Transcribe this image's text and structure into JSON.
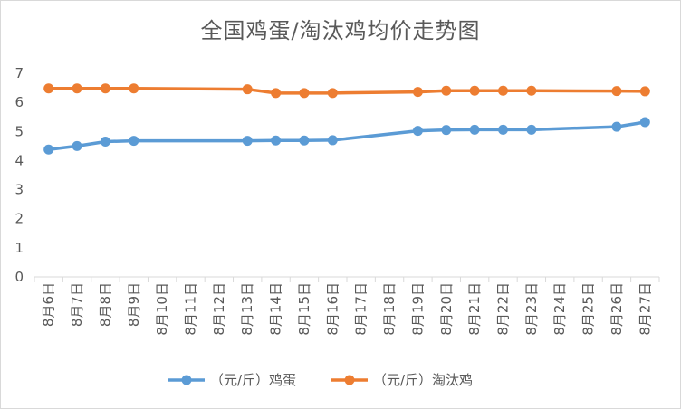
{
  "chart_data": {
    "type": "line",
    "title": "全国鸡蛋/淘汰鸡均价走势图",
    "xlabel": "",
    "ylabel": "",
    "ylim": [
      0,
      7
    ],
    "yticks": [
      0,
      1,
      2,
      3,
      4,
      5,
      6,
      7
    ],
    "grid": false,
    "legend_position": "bottom",
    "categories": [
      "8月6日",
      "8月7日",
      "8月8日",
      "8月9日",
      "8月10日",
      "8月11日",
      "8月12日",
      "8月13日",
      "8月14日",
      "8月15日",
      "8月16日",
      "8月17日",
      "8月18日",
      "8月19日",
      "8月20日",
      "8月21日",
      "8月22日",
      "8月23日",
      "8月24日",
      "8月25日",
      "8月26日",
      "8月27日"
    ],
    "series": [
      {
        "name": "（元/斤）鸡蛋",
        "color": "#5b9bd5",
        "values": [
          4.38,
          4.5,
          4.65,
          4.68,
          null,
          null,
          null,
          4.68,
          4.69,
          4.69,
          4.7,
          null,
          null,
          5.02,
          5.05,
          5.06,
          5.06,
          5.06,
          null,
          null,
          5.16,
          5.32
        ]
      },
      {
        "name": "（元/斤）淘汰鸡",
        "color": "#ed7d31",
        "values": [
          6.48,
          6.48,
          6.48,
          6.48,
          null,
          null,
          null,
          6.45,
          6.32,
          6.32,
          6.32,
          null,
          null,
          6.36,
          6.4,
          6.4,
          6.4,
          6.4,
          null,
          null,
          6.39,
          6.38
        ]
      }
    ]
  }
}
